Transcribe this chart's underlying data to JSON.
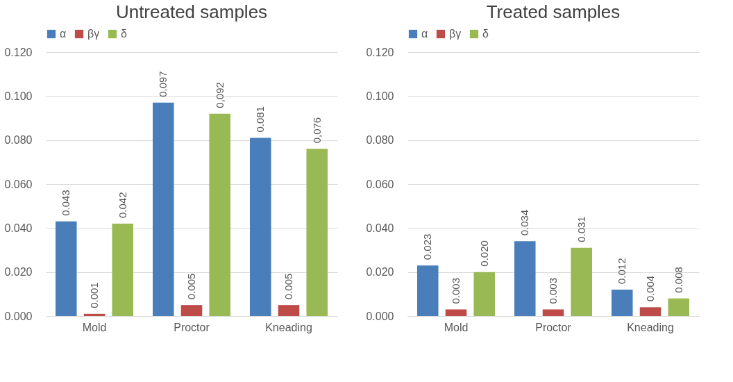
{
  "chart_data": [
    {
      "type": "bar",
      "title": "Untreated samples",
      "categories": [
        "Mold",
        "Proctor",
        "Kneading"
      ],
      "series": [
        {
          "name": "α",
          "color": "#4a7ebb",
          "values": [
            0.043,
            0.097,
            0.081
          ],
          "value_labels": [
            "0.043",
            "0.097",
            "0.081"
          ]
        },
        {
          "name": "βγ",
          "color": "#be4b48",
          "values": [
            0.001,
            0.005,
            0.005
          ],
          "value_labels": [
            "0.001",
            "0.005",
            "0.005"
          ]
        },
        {
          "name": "δ",
          "color": "#98b954",
          "values": [
            0.042,
            0.092,
            0.076
          ],
          "value_labels": [
            "0.042",
            "0,092",
            "0,076"
          ]
        }
      ],
      "ylim": [
        0,
        0.12
      ],
      "yticks": [
        {
          "value": 0,
          "label": "0.000"
        },
        {
          "value": 0.02,
          "label": "0.020"
        },
        {
          "value": 0.04,
          "label": "0.040"
        },
        {
          "value": 0.06,
          "label": "0.060"
        },
        {
          "value": 0.08,
          "label": "0.080"
        },
        {
          "value": 0.1,
          "label": "0.100"
        },
        {
          "value": 0.12,
          "label": "0.120"
        }
      ],
      "grid": "y",
      "legend": "top"
    },
    {
      "type": "bar",
      "title": "Treated samples",
      "categories": [
        "Mold",
        "Proctor",
        "Kneading"
      ],
      "series": [
        {
          "name": "α",
          "color": "#4a7ebb",
          "values": [
            0.023,
            0.034,
            0.012
          ],
          "value_labels": [
            "0.023",
            "0.034",
            "0.012"
          ]
        },
        {
          "name": "βγ",
          "color": "#be4b48",
          "values": [
            0.003,
            0.003,
            0.004
          ],
          "value_labels": [
            "0.003",
            "0.003",
            "0.004"
          ]
        },
        {
          "name": "δ",
          "color": "#98b954",
          "values": [
            0.02,
            0.031,
            0.008
          ],
          "value_labels": [
            "0.020",
            "0.031",
            "0.008"
          ]
        }
      ],
      "ylim": [
        0,
        0.12
      ],
      "yticks": [
        {
          "value": 0,
          "label": "0.000"
        },
        {
          "value": 0.02,
          "label": "0.020"
        },
        {
          "value": 0.04,
          "label": "0.040"
        },
        {
          "value": 0.06,
          "label": "0.060"
        },
        {
          "value": 0.08,
          "label": "0.080"
        },
        {
          "value": 0.1,
          "label": "0.100"
        },
        {
          "value": 0.12,
          "label": "0.120"
        }
      ],
      "grid": "y",
      "legend": "top"
    }
  ]
}
